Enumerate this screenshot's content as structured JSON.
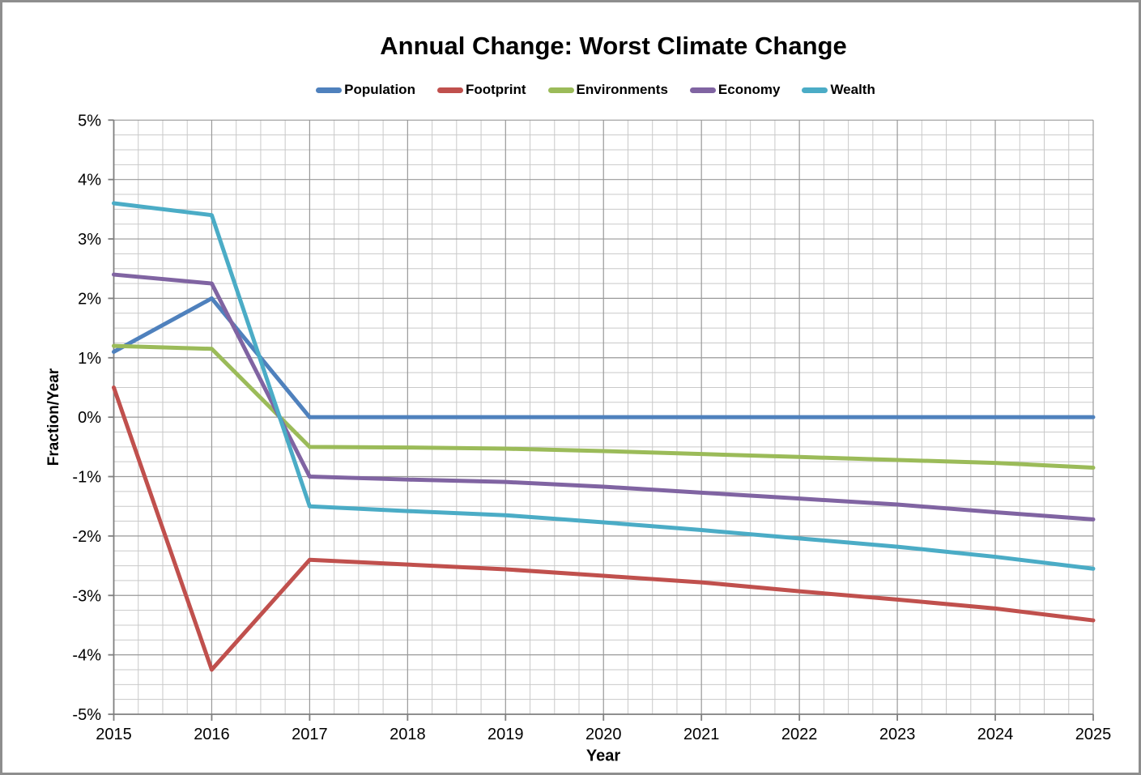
{
  "chart_data": {
    "type": "line",
    "title": "Annual Change: Worst Climate Change",
    "xlabel": "Year",
    "ylabel": "Fraction/Year",
    "xlim": [
      2015,
      2025
    ],
    "ylim": [
      -5,
      5
    ],
    "x": [
      2015,
      2016,
      2017,
      2018,
      2019,
      2020,
      2021,
      2022,
      2023,
      2024,
      2025
    ],
    "xtick_labels": [
      "2015",
      "2016",
      "2017",
      "2018",
      "2019",
      "2020",
      "2021",
      "2022",
      "2023",
      "2024",
      "2025"
    ],
    "yticks": [
      5,
      4,
      3,
      2,
      1,
      0,
      -1,
      -2,
      -3,
      -4,
      -5
    ],
    "ytick_labels": [
      "5%",
      "4%",
      "3%",
      "2%",
      "1%",
      "0%",
      "-1%",
      "-2%",
      "-3%",
      "-4%",
      "-5%"
    ],
    "grid": {
      "major": true,
      "minor": true,
      "minor_x_step": 0.25,
      "minor_y_step": 0.25
    },
    "legend_position": "top-center",
    "series": [
      {
        "name": "Population",
        "color": "#4F81BD",
        "values": [
          1.1,
          2.0,
          0.0,
          0.0,
          0.0,
          0.0,
          0.0,
          0.0,
          0.0,
          0.0,
          0.0
        ]
      },
      {
        "name": "Footprint",
        "color": "#C0504D",
        "values": [
          0.5,
          -4.25,
          -2.4,
          -2.48,
          -2.56,
          -2.67,
          -2.78,
          -2.93,
          -3.07,
          -3.22,
          -3.42
        ]
      },
      {
        "name": "Environments",
        "color": "#9BBB59",
        "values": [
          1.2,
          1.15,
          -0.5,
          -0.51,
          -0.53,
          -0.57,
          -0.62,
          -0.67,
          -0.72,
          -0.77,
          -0.85
        ]
      },
      {
        "name": "Economy",
        "color": "#8064A2",
        "values": [
          2.4,
          2.25,
          -1.0,
          -1.05,
          -1.09,
          -1.17,
          -1.27,
          -1.37,
          -1.47,
          -1.6,
          -1.72
        ]
      },
      {
        "name": "Wealth",
        "color": "#4BACC6",
        "values": [
          3.6,
          3.4,
          -1.5,
          -1.58,
          -1.65,
          -1.77,
          -1.9,
          -2.04,
          -2.18,
          -2.35,
          -2.55
        ]
      }
    ]
  },
  "style": {
    "background": "#ffffff",
    "frame_border": "#8e8e8e",
    "text_color": "#000000",
    "major_grid_color": "#999999",
    "minor_grid_color": "#c9c9c9",
    "axis_color": "#7f7f7f",
    "series_line_width": 5
  }
}
